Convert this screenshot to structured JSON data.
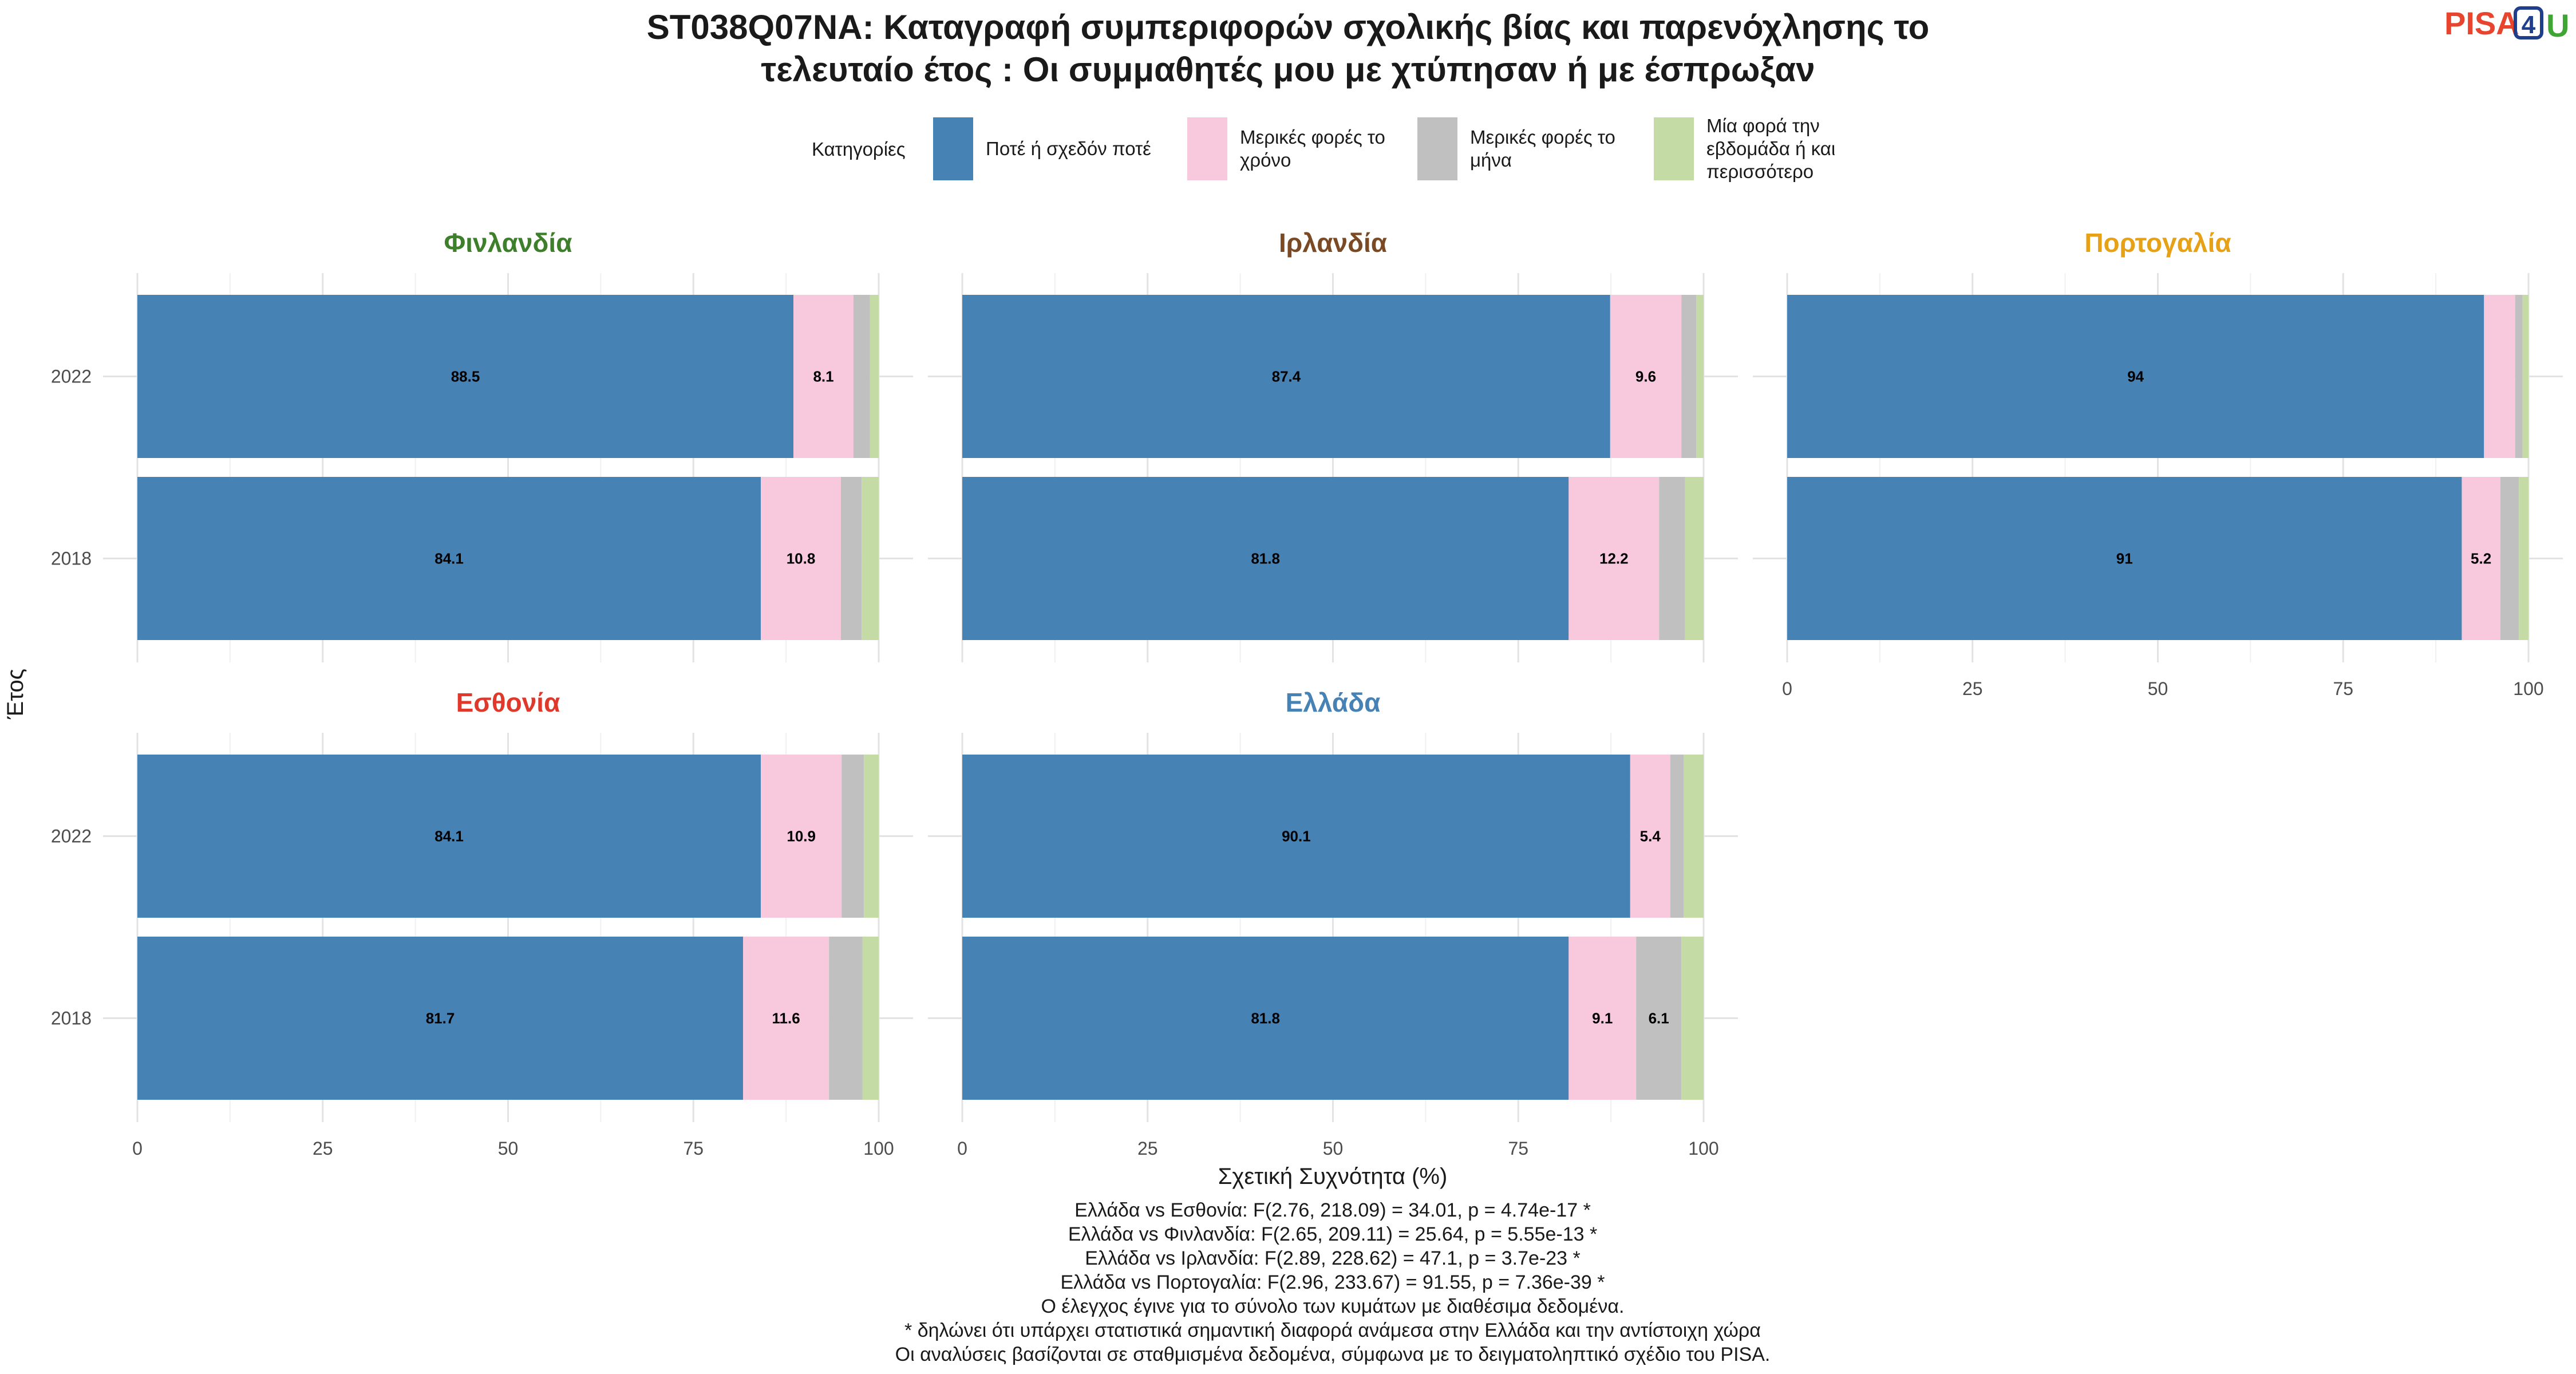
{
  "title_lines": [
    "ST038Q07NA: Καταγραφή συμπεριφορών σχολικής βίας και παρενόχλησης το",
    "τελευταίο έτος : Οι συμμαθητές μου με χτύπησαν ή με έσπρωξαν"
  ],
  "logo": {
    "pisa": "PISA",
    "four": "4",
    "u": "U",
    "pisa_color": "#e8452e",
    "four_color": "#1f3f8c",
    "u_color": "#3fa535"
  },
  "legend": {
    "title": "Κατηγορίες",
    "placement": "top",
    "items": [
      {
        "label_lines": [
          "Ποτέ ή σχεδόν ποτέ"
        ],
        "color": "#4682b4"
      },
      {
        "label_lines": [
          "Μερικές φορές το",
          "χρόνο"
        ],
        "color": "#f8c8dc"
      },
      {
        "label_lines": [
          "Μερικές φορές το",
          "μήνα"
        ],
        "color": "#c0c0c0"
      },
      {
        "label_lines": [
          "Μία φορά την",
          "εβδομάδα ή και",
          "περισσότερο"
        ],
        "color": "#c5dba6"
      }
    ]
  },
  "chart_data": {
    "type": "bar",
    "orientation": "horizontal",
    "stacked": true,
    "xlabel": "Σχετική Συχνότητα (%)",
    "ylabel": "Έτος",
    "xlim": [
      0,
      100
    ],
    "xticks": [
      "0",
      "25",
      "50",
      "75",
      "100"
    ],
    "grid": true,
    "categories": [
      "2022",
      "2018"
    ],
    "panels": [
      {
        "title": "Φινλανδία",
        "title_color": "#3d7f2a",
        "values": {
          "2022": [
            88.5,
            8.1,
            2.2,
            1.2
          ],
          "2018": [
            84.1,
            10.8,
            2.8,
            2.3
          ]
        },
        "labels": {
          "2022": [
            "88.5",
            "8.1",
            "",
            ""
          ],
          "2018": [
            "84.1",
            "10.8",
            "",
            ""
          ]
        }
      },
      {
        "title": "Ιρλανδία",
        "title_color": "#7a4a25",
        "values": {
          "2022": [
            87.4,
            9.6,
            2.0,
            1.0
          ],
          "2018": [
            81.8,
            12.2,
            3.5,
            2.5
          ]
        },
        "labels": {
          "2022": [
            "87.4",
            "9.6",
            "",
            ""
          ],
          "2018": [
            "81.8",
            "12.2",
            "",
            ""
          ]
        }
      },
      {
        "title": "Πορτογαλία",
        "title_color": "#e6a117",
        "values": {
          "2022": [
            94.0,
            4.2,
            1.0,
            0.8
          ],
          "2018": [
            91.0,
            5.2,
            2.5,
            1.3
          ]
        },
        "labels": {
          "2022": [
            "94",
            "",
            "",
            ""
          ],
          "2018": [
            "91",
            "5.2",
            "",
            ""
          ]
        }
      },
      {
        "title": "Εσθονία",
        "title_color": "#e0392b",
        "values": {
          "2022": [
            84.1,
            10.9,
            3.0,
            2.0
          ],
          "2018": [
            81.7,
            11.6,
            4.5,
            2.2
          ]
        },
        "labels": {
          "2022": [
            "84.1",
            "10.9",
            "",
            ""
          ],
          "2018": [
            "81.7",
            "11.6",
            "",
            ""
          ]
        }
      },
      {
        "title": "Ελλάδα",
        "title_color": "#4682b4",
        "values": {
          "2022": [
            90.1,
            5.4,
            1.8,
            2.7
          ],
          "2018": [
            81.8,
            9.1,
            6.1,
            3.0
          ]
        },
        "labels": {
          "2022": [
            "90.1",
            "5.4",
            "",
            ""
          ],
          "2018": [
            "81.8",
            "9.1",
            "6.1",
            ""
          ]
        }
      }
    ]
  },
  "notes": [
    "Ελλάδα vs Εσθονία: F(2.76, 218.09) = 34.01, p = 4.74e-17 *",
    "Ελλάδα vs Φινλανδία: F(2.65, 209.11) = 25.64, p = 5.55e-13 *",
    "Ελλάδα vs Ιρλανδία: F(2.89, 228.62) = 47.1, p = 3.7e-23 *",
    "Ελλάδα vs Πορτογαλία: F(2.96, 233.67) = 91.55, p = 7.36e-39 *",
    "Ο έλεγχος έγινε για το σύνολο των κυμάτων με διαθέσιμα δεδομένα.",
    "* δηλώνει ότι υπάρχει στατιστικά σημαντική διαφορά ανάμεσα στην Ελλάδα και την αντίστοιχη χώρα",
    "Οι αναλύσεις βασίζονται σε σταθμισμένα δεδομένα, σύμφωνα με το δειγματοληπτικό σχέδιο του PISA."
  ]
}
